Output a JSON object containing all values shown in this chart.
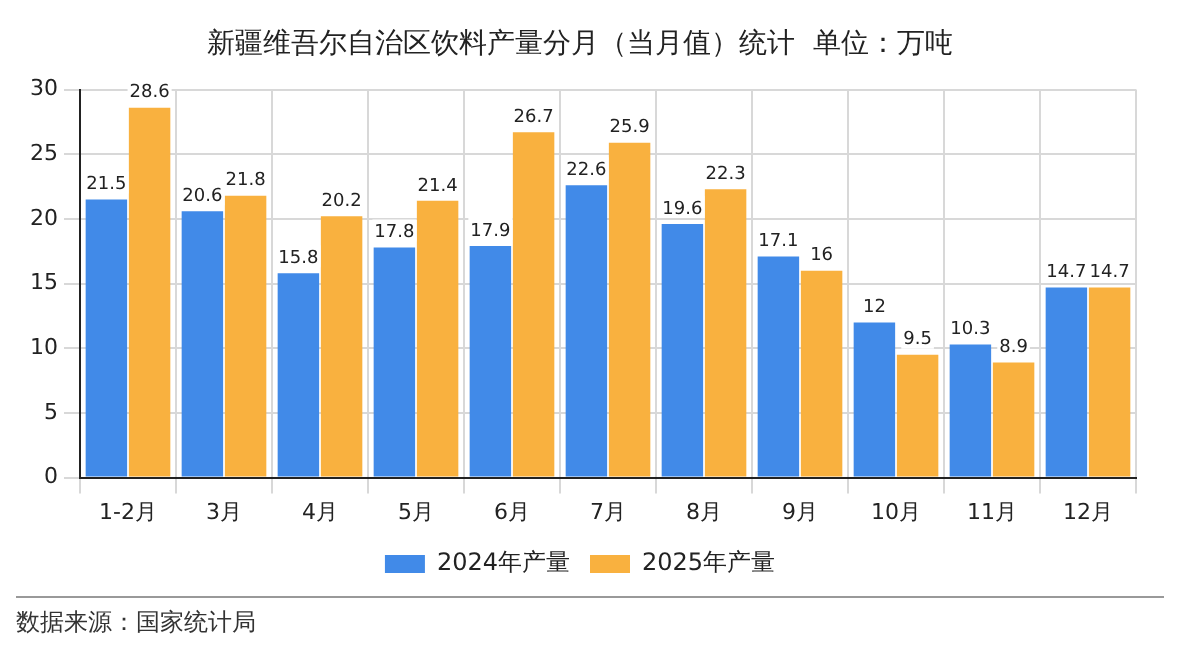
{
  "chart_data": {
    "type": "bar",
    "title": "新疆维吾尔自治区饮料产量分月（当月值）统计  单位：万吨",
    "categories": [
      "1-2月",
      "3月",
      "4月",
      "5月",
      "6月",
      "7月",
      "8月",
      "9月",
      "10月",
      "11月",
      "12月"
    ],
    "series": [
      {
        "name": "2024年产量",
        "color": "#418ae8",
        "values": [
          21.5,
          20.6,
          15.8,
          17.8,
          17.9,
          22.6,
          19.6,
          17.1,
          12,
          10.3,
          14.7
        ]
      },
      {
        "name": "2025年产量",
        "color": "#f9b13f",
        "values": [
          28.6,
          21.8,
          20.2,
          21.4,
          26.7,
          25.9,
          22.3,
          16,
          9.5,
          8.9,
          14.7
        ]
      }
    ],
    "ylim": [
      0,
      30
    ],
    "yticks": [
      0,
      5,
      10,
      15,
      20,
      25,
      30
    ],
    "grid": true,
    "legend": "bottom",
    "data_labels": true,
    "annotations": [
      "数据来源：国家统计局"
    ]
  }
}
